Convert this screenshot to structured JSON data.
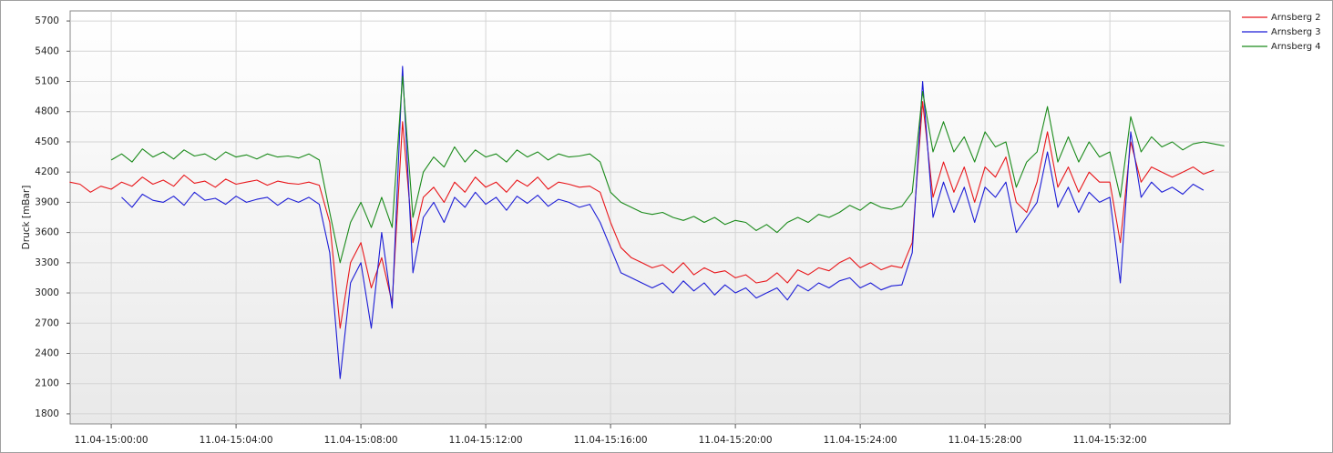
{
  "chart_data": {
    "type": "line",
    "y_label": "Druck [mBar]",
    "x": [
      "11.04-14:58:40",
      "11.04-14:59:00",
      "11.04-14:59:20",
      "11.04-14:59:40",
      "11.04-15:00:00",
      "11.04-15:00:20",
      "11.04-15:00:40",
      "11.04-15:01:00",
      "11.04-15:01:20",
      "11.04-15:01:40",
      "11.04-15:02:00",
      "11.04-15:02:20",
      "11.04-15:02:40",
      "11.04-15:03:00",
      "11.04-15:03:20",
      "11.04-15:03:40",
      "11.04-15:04:00",
      "11.04-15:04:20",
      "11.04-15:04:40",
      "11.04-15:05:00",
      "11.04-15:05:20",
      "11.04-15:05:40",
      "11.04-15:06:00",
      "11.04-15:06:20",
      "11.04-15:06:40",
      "11.04-15:07:00",
      "11.04-15:07:20",
      "11.04-15:07:40",
      "11.04-15:08:00",
      "11.04-15:08:20",
      "11.04-15:08:40",
      "11.04-15:09:00",
      "11.04-15:09:20",
      "11.04-15:09:40",
      "11.04-15:10:00",
      "11.04-15:10:20",
      "11.04-15:10:40",
      "11.04-15:11:00",
      "11.04-15:11:20",
      "11.04-15:11:40",
      "11.04-15:12:00",
      "11.04-15:12:20",
      "11.04-15:12:40",
      "11.04-15:13:00",
      "11.04-15:13:20",
      "11.04-15:13:40",
      "11.04-15:14:00",
      "11.04-15:14:20",
      "11.04-15:14:40",
      "11.04-15:15:00",
      "11.04-15:15:20",
      "11.04-15:15:40",
      "11.04-15:16:00",
      "11.04-15:16:20",
      "11.04-15:16:40",
      "11.04-15:17:00",
      "11.04-15:17:20",
      "11.04-15:17:40",
      "11.04-15:18:00",
      "11.04-15:18:20",
      "11.04-15:18:40",
      "11.04-15:19:00",
      "11.04-15:19:20",
      "11.04-15:19:40",
      "11.04-15:20:00",
      "11.04-15:20:20",
      "11.04-15:20:40",
      "11.04-15:21:00",
      "11.04-15:21:20",
      "11.04-15:21:40",
      "11.04-15:22:00",
      "11.04-15:22:20",
      "11.04-15:22:40",
      "11.04-15:23:00",
      "11.04-15:23:20",
      "11.04-15:23:40",
      "11.04-15:24:00",
      "11.04-15:24:20",
      "11.04-15:24:40",
      "11.04-15:25:00",
      "11.04-15:25:20",
      "11.04-15:25:40",
      "11.04-15:26:00",
      "11.04-15:26:20",
      "11.04-15:26:40",
      "11.04-15:27:00",
      "11.04-15:27:20",
      "11.04-15:27:40",
      "11.04-15:28:00",
      "11.04-15:28:20",
      "11.04-15:28:40",
      "11.04-15:29:00",
      "11.04-15:29:20",
      "11.04-15:29:40",
      "11.04-15:30:00",
      "11.04-15:30:20",
      "11.04-15:30:40",
      "11.04-15:31:00",
      "11.04-15:31:20",
      "11.04-15:31:40",
      "11.04-15:32:00",
      "11.04-15:32:20",
      "11.04-15:32:40",
      "11.04-15:33:00",
      "11.04-15:33:20",
      "11.04-15:33:40",
      "11.04-15:34:00",
      "11.04-15:34:20",
      "11.04-15:34:40",
      "11.04-15:35:00",
      "11.04-15:35:20",
      "11.04-15:35:40"
    ],
    "series": [
      {
        "name": "Arnsberg 2",
        "color": "#e8161a",
        "values": [
          4100,
          4080,
          4000,
          4060,
          4030,
          4100,
          4060,
          4150,
          4080,
          4120,
          4060,
          4170,
          4090,
          4110,
          4050,
          4130,
          4080,
          4100,
          4120,
          4070,
          4110,
          4090,
          4080,
          4100,
          4070,
          3700,
          2650,
          3300,
          3500,
          3050,
          3350,
          2900,
          4700,
          3500,
          3950,
          4050,
          3900,
          4100,
          4000,
          4150,
          4050,
          4100,
          4000,
          4120,
          4060,
          4150,
          4030,
          4100,
          4080,
          4050,
          4060,
          4000,
          3700,
          3450,
          3350,
          3300,
          3250,
          3280,
          3200,
          3300,
          3180,
          3250,
          3200,
          3220,
          3150,
          3180,
          3100,
          3120,
          3200,
          3100,
          3230,
          3180,
          3250,
          3220,
          3300,
          3350,
          3250,
          3300,
          3230,
          3270,
          3250,
          3500,
          4900,
          3950,
          4300,
          4000,
          4250,
          3900,
          4250,
          4150,
          4350,
          3900,
          3800,
          4100,
          4600,
          4050,
          4250,
          4000,
          4200,
          4100,
          4100,
          3500,
          4500,
          4100,
          4250,
          4200,
          4150,
          4200,
          4250,
          4180,
          4220,
          null
        ]
      },
      {
        "name": "Arnsberg 3",
        "color": "#1c1cd6",
        "values": [
          null,
          null,
          null,
          null,
          null,
          3950,
          3850,
          3980,
          3920,
          3900,
          3960,
          3870,
          4000,
          3920,
          3940,
          3880,
          3960,
          3900,
          3930,
          3950,
          3870,
          3940,
          3900,
          3950,
          3880,
          3400,
          2150,
          3100,
          3300,
          2650,
          3600,
          2850,
          5250,
          3200,
          3750,
          3900,
          3700,
          3950,
          3850,
          4000,
          3880,
          3950,
          3820,
          3960,
          3890,
          3970,
          3860,
          3930,
          3900,
          3850,
          3880,
          3700,
          3450,
          3200,
          3150,
          3100,
          3050,
          3100,
          3000,
          3120,
          3020,
          3100,
          2980,
          3080,
          3000,
          3050,
          2950,
          3000,
          3050,
          2930,
          3080,
          3020,
          3100,
          3050,
          3120,
          3150,
          3050,
          3100,
          3030,
          3070,
          3080,
          3400,
          5100,
          3750,
          4100,
          3800,
          4050,
          3700,
          4050,
          3950,
          4100,
          3600,
          3750,
          3900,
          4400,
          3850,
          4050,
          3800,
          4000,
          3900,
          3950,
          3100,
          4600,
          3950,
          4100,
          4000,
          4050,
          3980,
          4080,
          4020,
          null,
          null
        ]
      },
      {
        "name": "Arnsberg 4",
        "color": "#1a8a1a",
        "values": [
          null,
          null,
          null,
          null,
          4320,
          4380,
          4300,
          4430,
          4350,
          4400,
          4330,
          4420,
          4360,
          4380,
          4320,
          4400,
          4350,
          4370,
          4330,
          4380,
          4350,
          4360,
          4340,
          4380,
          4320,
          3800,
          3300,
          3700,
          3900,
          3650,
          3950,
          3650,
          5150,
          3750,
          4200,
          4350,
          4250,
          4450,
          4300,
          4420,
          4350,
          4380,
          4300,
          4420,
          4350,
          4400,
          4320,
          4380,
          4350,
          4360,
          4380,
          4300,
          4000,
          3900,
          3850,
          3800,
          3780,
          3800,
          3750,
          3720,
          3760,
          3700,
          3750,
          3680,
          3720,
          3700,
          3620,
          3680,
          3600,
          3700,
          3750,
          3700,
          3780,
          3750,
          3800,
          3870,
          3820,
          3900,
          3850,
          3830,
          3860,
          4000,
          5000,
          4400,
          4700,
          4400,
          4550,
          4300,
          4600,
          4450,
          4500,
          4050,
          4300,
          4400,
          4850,
          4300,
          4550,
          4300,
          4500,
          4350,
          4400,
          3950,
          4750,
          4400,
          4550,
          4450,
          4500,
          4420,
          4480,
          4500,
          4480,
          4460
        ]
      }
    ],
    "xlim": [
      "11.04-14:58:41",
      "11.04-15:35:51"
    ],
    "xticks": [
      "11.04-15:00:00",
      "11.04-15:04:00",
      "11.04-15:08:00",
      "11.04-15:12:00",
      "11.04-15:16:00",
      "11.04-15:20:00",
      "11.04-15:24:00",
      "11.04-15:28:00",
      "11.04-15:32:00"
    ],
    "ylim": [
      1700,
      5800
    ],
    "yticks": [
      1800,
      2100,
      2400,
      2700,
      3000,
      3300,
      3600,
      3900,
      4200,
      4500,
      4800,
      5100,
      5400,
      5700
    ],
    "grid": true,
    "legend": "top-right"
  }
}
